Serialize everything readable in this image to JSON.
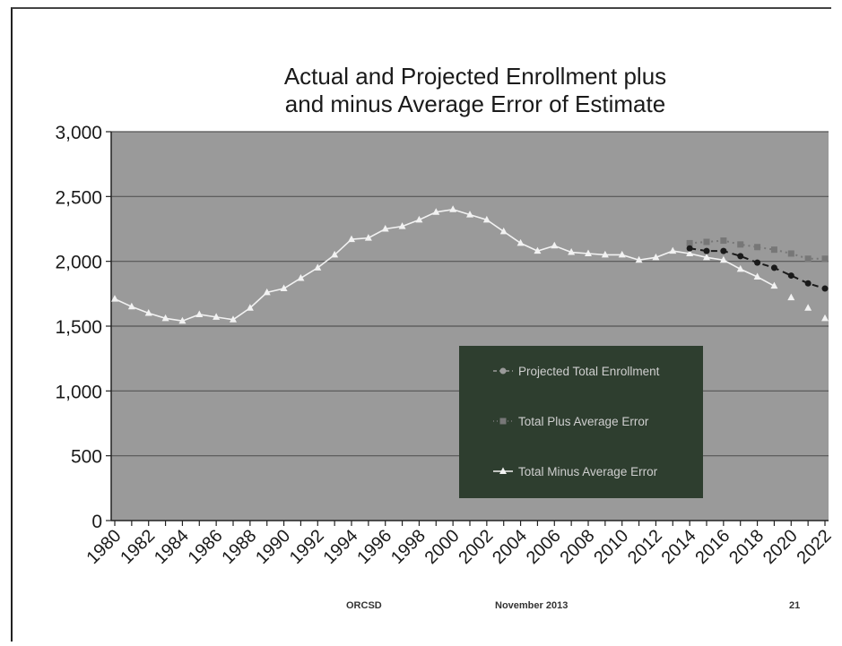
{
  "chart_data": {
    "type": "line",
    "title_lines": [
      "Actual and Projected Enrollment plus",
      "and minus Average Error of Estimate"
    ],
    "xlabel": "",
    "ylabel": "",
    "ylim": [
      0,
      3000
    ],
    "yticks": [
      "0",
      "500",
      "1,000",
      "1,500",
      "2,000",
      "2,500",
      "3,000"
    ],
    "ytick_values": [
      0,
      500,
      1000,
      1500,
      2000,
      2500,
      3000
    ],
    "xlim": [
      1980,
      2022
    ],
    "xtick_labels": [
      "1980",
      "1982",
      "1984",
      "1986",
      "1988",
      "1990",
      "1992",
      "1994",
      "1996",
      "1998",
      "2000",
      "2002",
      "2004",
      "2006",
      "2008",
      "2010",
      "2012",
      "2014",
      "2016",
      "2018",
      "2020",
      "2022"
    ],
    "grid": true,
    "legend_position": "bottom-right",
    "series": [
      {
        "name": "Projected Total Enrollment",
        "style": "dashed",
        "marker": "diamond",
        "color": "#1a1a1a",
        "x": [
          2014,
          2015,
          2016,
          2017,
          2018,
          2019,
          2020,
          2021,
          2022
        ],
        "values": [
          2100,
          2080,
          2080,
          2040,
          1990,
          1950,
          1890,
          1830,
          1790
        ]
      },
      {
        "name": "Total Plus Average Error",
        "style": "dotted",
        "marker": "square",
        "color": "#777777",
        "x": [
          2014,
          2015,
          2016,
          2017,
          2018,
          2019,
          2020,
          2021,
          2022
        ],
        "values": [
          2140,
          2150,
          2160,
          2130,
          2110,
          2090,
          2060,
          2020,
          2020
        ]
      },
      {
        "name": "Total Minus Average Error",
        "style": "solid",
        "marker": "triangle",
        "color": "#f2f2f2",
        "x": [
          1980,
          1981,
          1982,
          1983,
          1984,
          1985,
          1986,
          1987,
          1988,
          1989,
          1990,
          1991,
          1992,
          1993,
          1994,
          1995,
          1996,
          1997,
          1998,
          1999,
          2000,
          2001,
          2002,
          2003,
          2004,
          2005,
          2006,
          2007,
          2008,
          2009,
          2010,
          2011,
          2012,
          2013,
          2014,
          2015,
          2016,
          2017,
          2018,
          2019,
          2020,
          2021,
          2022
        ],
        "values": [
          1710,
          1650,
          1600,
          1560,
          1540,
          1590,
          1570,
          1550,
          1640,
          1760,
          1790,
          1870,
          1950,
          2050,
          2170,
          2180,
          2250,
          2270,
          2320,
          2380,
          2400,
          2360,
          2320,
          2230,
          2140,
          2080,
          2120,
          2070,
          2060,
          2050,
          2050,
          2010,
          2030,
          2080,
          2060,
          2030,
          2010,
          1940,
          1880,
          1810,
          1720,
          1640,
          1560
        ]
      }
    ]
  },
  "footer": {
    "left": "ORCSD",
    "center": "November 2013",
    "right": "21"
  },
  "colors": {
    "plot_bg": "#9a9a9a",
    "legend_bg": "#2e3e2f",
    "grid": "#555555"
  }
}
